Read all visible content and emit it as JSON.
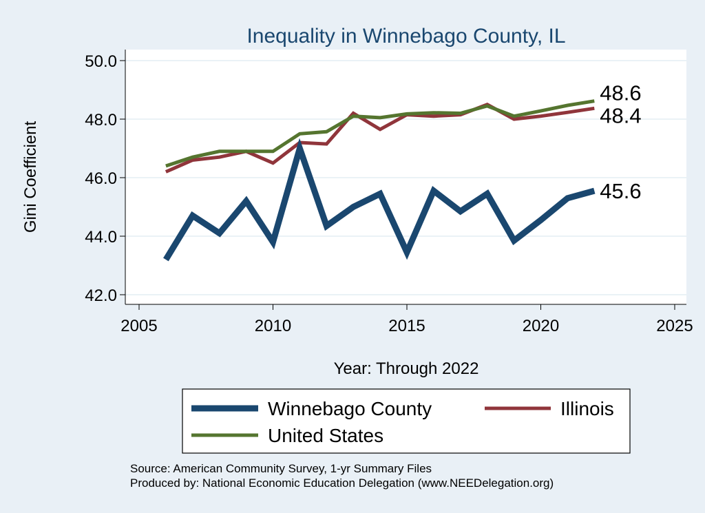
{
  "chart_data": {
    "type": "line",
    "title": "Inequality in Winnebago County, IL",
    "xlabel": "Year: Through 2022",
    "ylabel": "Gini Coefficient",
    "xlim": [
      2005,
      2025
    ],
    "ylim": [
      42.0,
      50.0
    ],
    "xticks": [
      "2005",
      "2010",
      "2015",
      "2020",
      "2025"
    ],
    "yticks": [
      "42.0",
      "44.0",
      "46.0",
      "48.0",
      "50.0"
    ],
    "x": [
      2006,
      2007,
      2008,
      2009,
      2010,
      2011,
      2012,
      2013,
      2014,
      2015,
      2016,
      2017,
      2018,
      2019,
      2020,
      2021,
      2022
    ],
    "series": [
      {
        "name": "Winnebago County",
        "color": "#1a476f",
        "values": [
          43.2,
          44.7,
          44.1,
          45.2,
          43.8,
          47.0,
          44.35,
          45.0,
          45.45,
          43.45,
          45.55,
          44.85,
          45.45,
          43.85,
          44.55,
          45.3,
          45.55
        ],
        "end_label": "45.6"
      },
      {
        "name": "Illinois",
        "color": "#90353b",
        "values": [
          46.2,
          46.6,
          46.7,
          46.9,
          46.5,
          47.2,
          47.15,
          48.2,
          47.65,
          48.15,
          48.1,
          48.15,
          48.5,
          48.0,
          48.1,
          48.23,
          48.37
        ],
        "end_label": "48.4"
      },
      {
        "name": "United States",
        "color": "#55752f",
        "values": [
          46.4,
          46.7,
          46.9,
          46.9,
          46.9,
          47.5,
          47.57,
          48.1,
          48.05,
          48.18,
          48.22,
          48.2,
          48.45,
          48.1,
          48.28,
          48.47,
          48.62
        ],
        "end_label": "48.6"
      }
    ],
    "legend": {
      "placement": "bottom",
      "entries": [
        "Winnebago County",
        "Illinois",
        "United States"
      ]
    },
    "grid": true
  },
  "source": {
    "line1": "Source: American Community Survey, 1-yr Summary Files",
    "line2": "Produced by: National Economic Education Delegation (www.NEEDelegation.org)"
  },
  "colors": {
    "background": "#e9f0f6",
    "plot_background": "#ffffff",
    "grid": "#e4eef4",
    "title": "#1a476f"
  }
}
